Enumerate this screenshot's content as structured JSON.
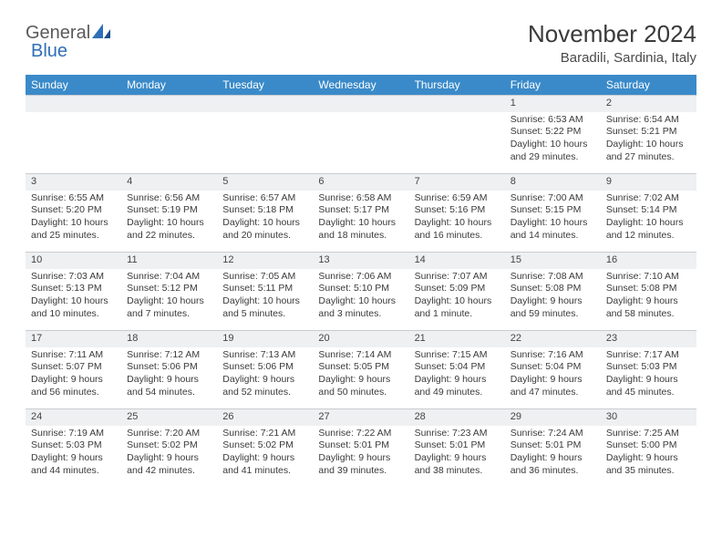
{
  "logo": {
    "gray": "General",
    "blue": "Blue"
  },
  "title": "November 2024",
  "subtitle": "Baradili, Sardinia, Italy",
  "weekdays": [
    "Sunday",
    "Monday",
    "Tuesday",
    "Wednesday",
    "Thursday",
    "Friday",
    "Saturday"
  ],
  "colors": {
    "header_bg": "#3a8ac9",
    "header_text": "#ffffff",
    "daynum_bg": "#eef0f2",
    "border": "#c8ccd0",
    "title_text": "#3a3a3a",
    "body_text": "#3a3a3a"
  },
  "weeks": [
    [
      null,
      null,
      null,
      null,
      null,
      {
        "n": "1",
        "sunrise": "Sunrise: 6:53 AM",
        "sunset": "Sunset: 5:22 PM",
        "day1": "Daylight: 10 hours",
        "day2": "and 29 minutes."
      },
      {
        "n": "2",
        "sunrise": "Sunrise: 6:54 AM",
        "sunset": "Sunset: 5:21 PM",
        "day1": "Daylight: 10 hours",
        "day2": "and 27 minutes."
      }
    ],
    [
      {
        "n": "3",
        "sunrise": "Sunrise: 6:55 AM",
        "sunset": "Sunset: 5:20 PM",
        "day1": "Daylight: 10 hours",
        "day2": "and 25 minutes."
      },
      {
        "n": "4",
        "sunrise": "Sunrise: 6:56 AM",
        "sunset": "Sunset: 5:19 PM",
        "day1": "Daylight: 10 hours",
        "day2": "and 22 minutes."
      },
      {
        "n": "5",
        "sunrise": "Sunrise: 6:57 AM",
        "sunset": "Sunset: 5:18 PM",
        "day1": "Daylight: 10 hours",
        "day2": "and 20 minutes."
      },
      {
        "n": "6",
        "sunrise": "Sunrise: 6:58 AM",
        "sunset": "Sunset: 5:17 PM",
        "day1": "Daylight: 10 hours",
        "day2": "and 18 minutes."
      },
      {
        "n": "7",
        "sunrise": "Sunrise: 6:59 AM",
        "sunset": "Sunset: 5:16 PM",
        "day1": "Daylight: 10 hours",
        "day2": "and 16 minutes."
      },
      {
        "n": "8",
        "sunrise": "Sunrise: 7:00 AM",
        "sunset": "Sunset: 5:15 PM",
        "day1": "Daylight: 10 hours",
        "day2": "and 14 minutes."
      },
      {
        "n": "9",
        "sunrise": "Sunrise: 7:02 AM",
        "sunset": "Sunset: 5:14 PM",
        "day1": "Daylight: 10 hours",
        "day2": "and 12 minutes."
      }
    ],
    [
      {
        "n": "10",
        "sunrise": "Sunrise: 7:03 AM",
        "sunset": "Sunset: 5:13 PM",
        "day1": "Daylight: 10 hours",
        "day2": "and 10 minutes."
      },
      {
        "n": "11",
        "sunrise": "Sunrise: 7:04 AM",
        "sunset": "Sunset: 5:12 PM",
        "day1": "Daylight: 10 hours",
        "day2": "and 7 minutes."
      },
      {
        "n": "12",
        "sunrise": "Sunrise: 7:05 AM",
        "sunset": "Sunset: 5:11 PM",
        "day1": "Daylight: 10 hours",
        "day2": "and 5 minutes."
      },
      {
        "n": "13",
        "sunrise": "Sunrise: 7:06 AM",
        "sunset": "Sunset: 5:10 PM",
        "day1": "Daylight: 10 hours",
        "day2": "and 3 minutes."
      },
      {
        "n": "14",
        "sunrise": "Sunrise: 7:07 AM",
        "sunset": "Sunset: 5:09 PM",
        "day1": "Daylight: 10 hours",
        "day2": "and 1 minute."
      },
      {
        "n": "15",
        "sunrise": "Sunrise: 7:08 AM",
        "sunset": "Sunset: 5:08 PM",
        "day1": "Daylight: 9 hours",
        "day2": "and 59 minutes."
      },
      {
        "n": "16",
        "sunrise": "Sunrise: 7:10 AM",
        "sunset": "Sunset: 5:08 PM",
        "day1": "Daylight: 9 hours",
        "day2": "and 58 minutes."
      }
    ],
    [
      {
        "n": "17",
        "sunrise": "Sunrise: 7:11 AM",
        "sunset": "Sunset: 5:07 PM",
        "day1": "Daylight: 9 hours",
        "day2": "and 56 minutes."
      },
      {
        "n": "18",
        "sunrise": "Sunrise: 7:12 AM",
        "sunset": "Sunset: 5:06 PM",
        "day1": "Daylight: 9 hours",
        "day2": "and 54 minutes."
      },
      {
        "n": "19",
        "sunrise": "Sunrise: 7:13 AM",
        "sunset": "Sunset: 5:06 PM",
        "day1": "Daylight: 9 hours",
        "day2": "and 52 minutes."
      },
      {
        "n": "20",
        "sunrise": "Sunrise: 7:14 AM",
        "sunset": "Sunset: 5:05 PM",
        "day1": "Daylight: 9 hours",
        "day2": "and 50 minutes."
      },
      {
        "n": "21",
        "sunrise": "Sunrise: 7:15 AM",
        "sunset": "Sunset: 5:04 PM",
        "day1": "Daylight: 9 hours",
        "day2": "and 49 minutes."
      },
      {
        "n": "22",
        "sunrise": "Sunrise: 7:16 AM",
        "sunset": "Sunset: 5:04 PM",
        "day1": "Daylight: 9 hours",
        "day2": "and 47 minutes."
      },
      {
        "n": "23",
        "sunrise": "Sunrise: 7:17 AM",
        "sunset": "Sunset: 5:03 PM",
        "day1": "Daylight: 9 hours",
        "day2": "and 45 minutes."
      }
    ],
    [
      {
        "n": "24",
        "sunrise": "Sunrise: 7:19 AM",
        "sunset": "Sunset: 5:03 PM",
        "day1": "Daylight: 9 hours",
        "day2": "and 44 minutes."
      },
      {
        "n": "25",
        "sunrise": "Sunrise: 7:20 AM",
        "sunset": "Sunset: 5:02 PM",
        "day1": "Daylight: 9 hours",
        "day2": "and 42 minutes."
      },
      {
        "n": "26",
        "sunrise": "Sunrise: 7:21 AM",
        "sunset": "Sunset: 5:02 PM",
        "day1": "Daylight: 9 hours",
        "day2": "and 41 minutes."
      },
      {
        "n": "27",
        "sunrise": "Sunrise: 7:22 AM",
        "sunset": "Sunset: 5:01 PM",
        "day1": "Daylight: 9 hours",
        "day2": "and 39 minutes."
      },
      {
        "n": "28",
        "sunrise": "Sunrise: 7:23 AM",
        "sunset": "Sunset: 5:01 PM",
        "day1": "Daylight: 9 hours",
        "day2": "and 38 minutes."
      },
      {
        "n": "29",
        "sunrise": "Sunrise: 7:24 AM",
        "sunset": "Sunset: 5:01 PM",
        "day1": "Daylight: 9 hours",
        "day2": "and 36 minutes."
      },
      {
        "n": "30",
        "sunrise": "Sunrise: 7:25 AM",
        "sunset": "Sunset: 5:00 PM",
        "day1": "Daylight: 9 hours",
        "day2": "and 35 minutes."
      }
    ]
  ]
}
